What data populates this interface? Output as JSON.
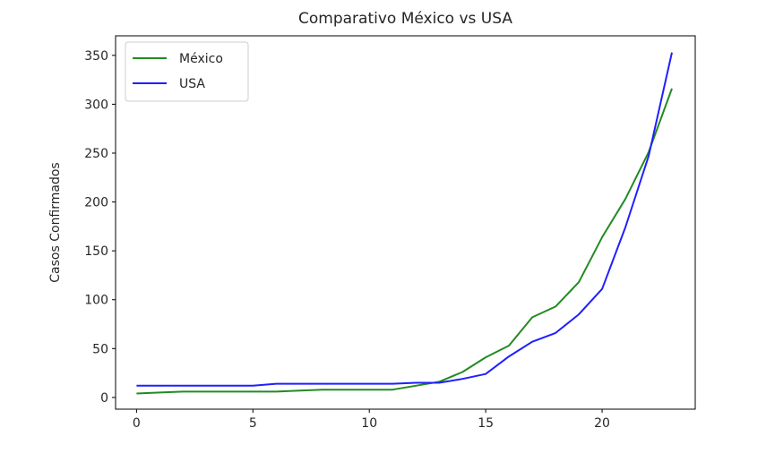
{
  "chart_data": {
    "type": "line",
    "title": "Comparativo México vs USA",
    "xlabel": "",
    "ylabel": "Casos Confirmados",
    "xlim": [
      -0.9,
      24.0
    ],
    "ylim": [
      -12,
      370
    ],
    "xticks": [
      0,
      5,
      10,
      15,
      20
    ],
    "yticks": [
      0,
      50,
      100,
      150,
      200,
      250,
      300,
      350
    ],
    "grid": false,
    "legend_position": "top-left",
    "series": [
      {
        "name": "México",
        "color": "#228b22",
        "x": [
          0,
          1,
          2,
          3,
          4,
          5,
          6,
          7,
          8,
          9,
          10,
          11,
          12,
          13,
          14,
          15,
          16,
          17,
          18,
          19,
          20,
          21,
          22,
          23
        ],
        "y": [
          4,
          5,
          6,
          6,
          6,
          6,
          6,
          7,
          8,
          8,
          8,
          8,
          12,
          16,
          26,
          41,
          53,
          82,
          93,
          118,
          164,
          203,
          251,
          316
        ]
      },
      {
        "name": "USA",
        "color": "#1f1fff",
        "x": [
          0,
          1,
          2,
          3,
          4,
          5,
          6,
          7,
          8,
          9,
          10,
          11,
          12,
          13,
          14,
          15,
          16,
          17,
          18,
          19,
          20,
          21,
          22,
          23
        ],
        "y": [
          12,
          12,
          12,
          12,
          12,
          12,
          14,
          14,
          14,
          14,
          14,
          14,
          15,
          15,
          19,
          24,
          42,
          57,
          66,
          85,
          111,
          174,
          247,
          353
        ]
      }
    ]
  }
}
